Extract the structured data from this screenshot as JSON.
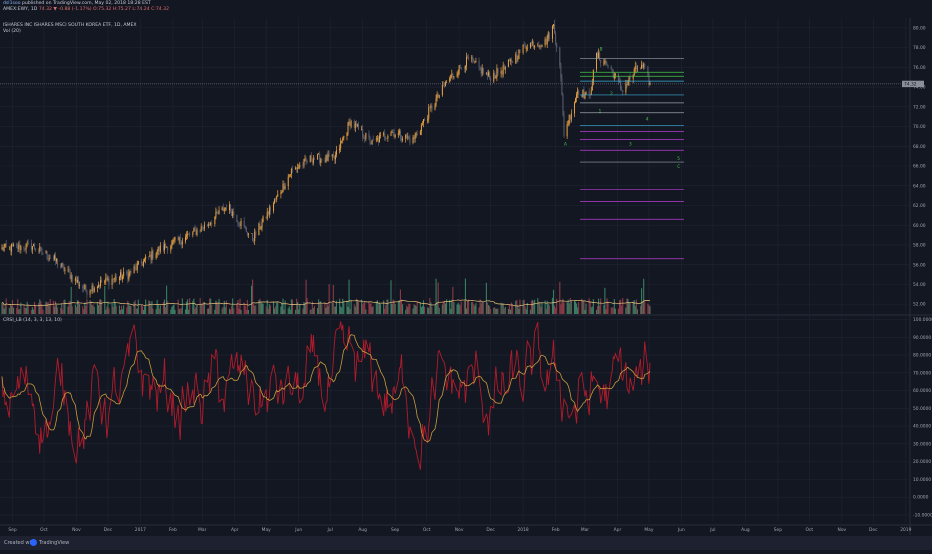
{
  "header": {
    "publisher": "dsl1soo",
    "published": "published on TradingView.com, May 02, 2018 18:28 EST",
    "ticker": "AMEX:EWY, 1D",
    "ohlc": "74.32 ▼ -0.88 (-1.17%) O:75.32 H:75.27 L:74.24 C:74.32",
    "title": "ISHARES INC ISHARES MSCI SOUTH KOREA ETF, 1D, AMEX",
    "volume_label": "Vol (20)"
  },
  "price_tag": "74.32",
  "footer": {
    "created": "Created with",
    "brand": "TradingView"
  },
  "colors": {
    "up": "#e8a040",
    "down": "#5a6072",
    "wick": "#d0d0d0",
    "vol_up": "#3a7d62",
    "vol_down": "#8a3a46",
    "vol_ma": "#e8c07a",
    "osc": "#b01c2c",
    "osc_signal": "#c89a3c",
    "fib_purple": "#b83cd8",
    "fib_cyan": "#3ab0d8",
    "fib_green": "#46c84a",
    "fib_gray": "#9aa0aa",
    "wave_label": "#46c84a"
  },
  "chart_data": [
    {
      "type": "candlestick",
      "title": "ISHARES INC ISHARES MSCI SOUTH KOREA ETF, 1D, AMEX",
      "x_ticks": [
        "Sep",
        "Oct",
        "Nov",
        "Dec",
        "2017",
        "Feb",
        "Mar",
        "Apr",
        "May",
        "Jun",
        "Jul",
        "Aug",
        "Sep",
        "Oct",
        "Nov",
        "Dec",
        "2018",
        "Feb",
        "Mar",
        "Apr",
        "May",
        "Jun",
        "Jul",
        "Aug",
        "Sep",
        "Oct",
        "Nov",
        "Dec",
        "2019"
      ],
      "y_ticks": [
        "80.00",
        "78.00",
        "76.00",
        "74.00",
        "72.00",
        "70.00",
        "68.00",
        "66.00",
        "64.00",
        "62.00",
        "60.00",
        "58.00",
        "56.00",
        "54.00",
        "52.00"
      ],
      "ylim": [
        51,
        81
      ],
      "x_range": [
        "2016-08-22",
        "2019-01-05"
      ],
      "price_path": [
        [
          "2016-08-22",
          57.6
        ],
        [
          "2016-09-20",
          57.9
        ],
        [
          "2016-10-12",
          56.4
        ],
        [
          "2016-11-10",
          53.4
        ],
        [
          "2016-11-25",
          54.2
        ],
        [
          "2016-12-20",
          55.0
        ],
        [
          "2017-01-18",
          57.5
        ],
        [
          "2017-02-10",
          58.6
        ],
        [
          "2017-03-05",
          60.0
        ],
        [
          "2017-03-25",
          62.0
        ],
        [
          "2017-04-18",
          58.6
        ],
        [
          "2017-05-08",
          62.2
        ],
        [
          "2017-05-25",
          65.5
        ],
        [
          "2017-06-14",
          66.8
        ],
        [
          "2017-07-05",
          66.7
        ],
        [
          "2017-07-20",
          70.5
        ],
        [
          "2017-08-10",
          68.3
        ],
        [
          "2017-08-28",
          69.5
        ],
        [
          "2017-09-18",
          68.6
        ],
        [
          "2017-10-05",
          71.8
        ],
        [
          "2017-10-22",
          74.8
        ],
        [
          "2017-11-10",
          76.8
        ],
        [
          "2017-11-30",
          75.0
        ],
        [
          "2017-12-15",
          75.9
        ],
        [
          "2018-01-05",
          78.4
        ],
        [
          "2018-01-22",
          78.5
        ],
        [
          "2018-01-30",
          80.2
        ],
        [
          "2018-02-05",
          76.5
        ],
        [
          "2018-02-09",
          69.3
        ],
        [
          "2018-02-15",
          71.2
        ],
        [
          "2018-02-22",
          73.7
        ],
        [
          "2018-03-05",
          72.9
        ],
        [
          "2018-03-12",
          77.2
        ],
        [
          "2018-03-20",
          76.5
        ],
        [
          "2018-03-28",
          75.4
        ],
        [
          "2018-04-05",
          73.7
        ],
        [
          "2018-04-12",
          74.7
        ],
        [
          "2018-04-20",
          76.0
        ],
        [
          "2018-04-26",
          75.9
        ],
        [
          "2018-05-02",
          74.32
        ]
      ],
      "wave_labels": [
        [
          "2018-03-15",
          77.7,
          "B"
        ],
        [
          "2018-03-14",
          71.4,
          "1"
        ],
        [
          "2018-03-25",
          73.2,
          "2"
        ],
        [
          "2018-02-09",
          68.1,
          "A"
        ],
        [
          "2018-04-12",
          68.1,
          "3"
        ],
        [
          "2018-04-28",
          70.6,
          "4"
        ],
        [
          "2018-05-28",
          66.6,
          "5"
        ],
        [
          "2018-05-28",
          65.8,
          "C"
        ]
      ],
      "fib_levels": [
        {
          "value": 76.9,
          "color": "fib_gray"
        },
        {
          "value": 75.5,
          "color": "fib_green"
        },
        {
          "value": 75.1,
          "color": "fib_green"
        },
        {
          "value": 74.6,
          "color": "fib_cyan"
        },
        {
          "value": 73.2,
          "color": "fib_cyan"
        },
        {
          "value": 72.4,
          "color": "fib_gray"
        },
        {
          "value": 71.4,
          "color": "fib_gray"
        },
        {
          "value": 70.1,
          "color": "fib_cyan"
        },
        {
          "value": 69.5,
          "color": "fib_purple"
        },
        {
          "value": 68.7,
          "color": "fib_purple"
        },
        {
          "value": 67.6,
          "color": "fib_purple"
        },
        {
          "value": 66.4,
          "color": "fib_gray"
        },
        {
          "value": 63.6,
          "color": "fib_purple"
        },
        {
          "value": 62.4,
          "color": "fib_purple"
        },
        {
          "value": 60.6,
          "color": "fib_purple"
        },
        {
          "value": 56.6,
          "color": "fib_purple"
        }
      ]
    },
    {
      "type": "bar",
      "title": "Vol (20)",
      "description": "Daily volume bars in the lower part of the price pane with a 20-period moving average"
    },
    {
      "type": "line",
      "title": "CRSI_LB (14, 3, 3, 13, 10)",
      "y_ticks": [
        "100.0000",
        "90.0000",
        "80.0000",
        "70.0000",
        "60.0000",
        "50.0000",
        "40.0000",
        "30.0000",
        "20.0000",
        "10.0000",
        "0.0000",
        "-10.0000"
      ],
      "ylim": [
        -14,
        102
      ],
      "series": [
        {
          "name": "CRSI"
        },
        {
          "name": "Signal"
        }
      ]
    }
  ]
}
